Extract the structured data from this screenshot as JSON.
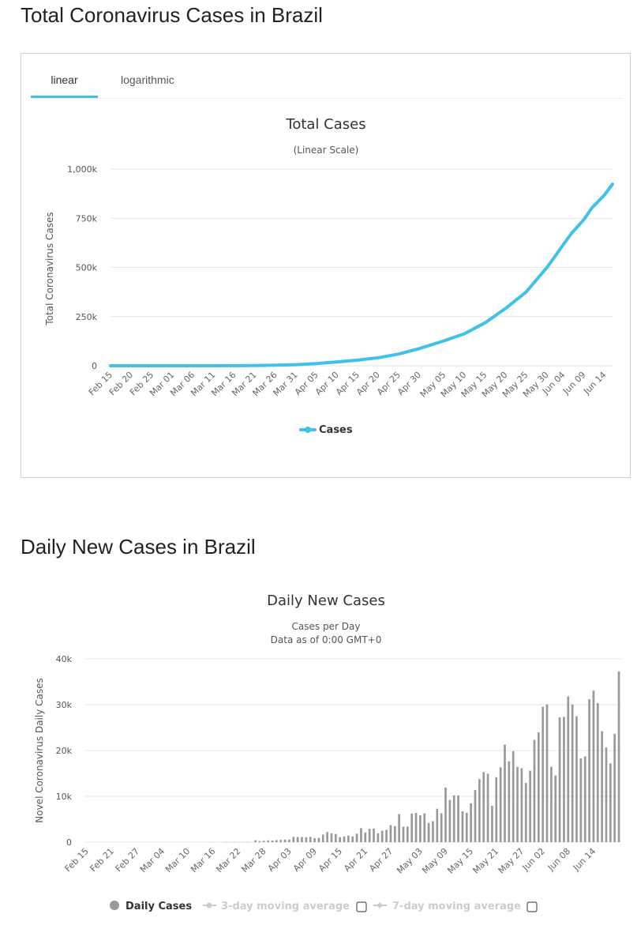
{
  "section1_title": "Total Coronavirus Cases in Brazil",
  "section2_title": "Daily New Cases in Brazil",
  "tabs": [
    {
      "label": "linear",
      "active": true
    },
    {
      "label": "logarithmic",
      "active": false
    }
  ],
  "colors": {
    "accent": "#3fc1e8",
    "bar": "#999999",
    "grid": "#e6e6e6"
  },
  "chart_data": [
    {
      "type": "line",
      "title": "Total Cases",
      "subtitle": "(Linear Scale)",
      "ylabel": "Total Coronavirus Cases",
      "ylim": [
        0,
        1000000
      ],
      "yticks": [
        "0",
        "250k",
        "500k",
        "750k",
        "1,000k"
      ],
      "ytick_values": [
        0,
        250000,
        500000,
        750000,
        1000000
      ],
      "xticks": [
        "Feb 15",
        "Feb 20",
        "Feb 25",
        "Mar 01",
        "Mar 06",
        "Mar 11",
        "Mar 16",
        "Mar 21",
        "Mar 26",
        "Mar 31",
        "Apr 05",
        "Apr 10",
        "Apr 15",
        "Apr 20",
        "Apr 25",
        "Apr 30",
        "May 05",
        "May 10",
        "May 15",
        "May 20",
        "May 25",
        "May 30",
        "Jun 04",
        "Jun 09",
        "Jun 14"
      ],
      "legend_position": "bottom-center",
      "grid": true,
      "series": [
        {
          "name": "Cases",
          "color": "#3fc1e8",
          "x": [
            "Feb 15",
            "Feb 25",
            "Mar 06",
            "Mar 16",
            "Mar 21",
            "Mar 26",
            "Mar 31",
            "Apr 05",
            "Apr 10",
            "Apr 15",
            "Apr 20",
            "Apr 25",
            "Apr 30",
            "May 05",
            "May 10",
            "May 15",
            "May 20",
            "May 25",
            "May 30",
            "Jun 02",
            "Jun 04",
            "Jun 06",
            "Jun 09",
            "Jun 11",
            "Jun 14",
            "Jun 16"
          ],
          "values": [
            0,
            0,
            13,
            234,
            1128,
            2915,
            5717,
            11130,
            19638,
            28320,
            40743,
            59324,
            87187,
            126611,
            162699,
            218223,
            291579,
            374898,
            498440,
            555383,
            614941,
            672846,
            742084,
            802828,
            867624,
            923189
          ]
        }
      ]
    },
    {
      "type": "bar",
      "title": "Daily New Cases",
      "subtitle": "Cases per Day",
      "subtitle2": "Data as of 0:00 GMT+0",
      "ylabel": "Novel Coronavirus Daily Cases",
      "ylim": [
        0,
        40000
      ],
      "yticks": [
        "0",
        "10k",
        "20k",
        "30k",
        "40k"
      ],
      "ytick_values": [
        0,
        10000,
        20000,
        30000,
        40000
      ],
      "xticks": [
        "Feb 15",
        "Feb 21",
        "Feb 27",
        "Mar 04",
        "Mar 10",
        "Mar 16",
        "Mar 22",
        "Mar 28",
        "Apr 03",
        "Apr 09",
        "Apr 15",
        "Apr 21",
        "Apr 27",
        "May 03",
        "May 09",
        "May 15",
        "May 21",
        "May 27",
        "Jun 02",
        "Jun 08",
        "Jun 14"
      ],
      "legend": [
        {
          "label": "Daily Cases",
          "active": true
        },
        {
          "label": "3-day moving average",
          "active": false
        },
        {
          "label": "7-day moving average",
          "active": false
        }
      ],
      "grid": true,
      "series": [
        {
          "name": "Daily Cases",
          "color": "#999999",
          "start": "Feb 15",
          "values": [
            0,
            0,
            0,
            0,
            0,
            0,
            0,
            0,
            0,
            0,
            0,
            0,
            1,
            0,
            0,
            0,
            0,
            0,
            0,
            1,
            1,
            2,
            0,
            5,
            5,
            5,
            6,
            7,
            14,
            9,
            12,
            1,
            12,
            66,
            38,
            60,
            24,
            50,
            52,
            0,
            396,
            240,
            304,
            374,
            352,
            446,
            493,
            538,
            570,
            1138,
            1138,
            1119,
            1074,
            1146,
            852,
            926,
            1661,
            2210,
            1930,
            1781,
            1089,
            1240,
            1442,
            1261,
            1832,
            3058,
            2105,
            2917,
            2971,
            1927,
            2498,
            2678,
            3735,
            3503,
            6138,
            3379,
            3379,
            6254,
            6388,
            5862,
            6274,
            4171,
            4570,
            7288,
            6296,
            11923,
            9209,
            10207,
            10175,
            6726,
            6416,
            8474,
            11385,
            13761,
            15286,
            14921,
            7938,
            14183,
            16325,
            21270,
            17651,
            19834,
            16415,
            16124,
            12917,
            15597,
            22325,
            23966,
            29553,
            30093,
            16421,
            14537,
            27257,
            27337,
            31796,
            30052,
            27472,
            18296,
            18715,
            31197,
            33061,
            30354,
            24212,
            20653,
            17188,
            23650,
            37278
          ]
        }
      ]
    }
  ]
}
